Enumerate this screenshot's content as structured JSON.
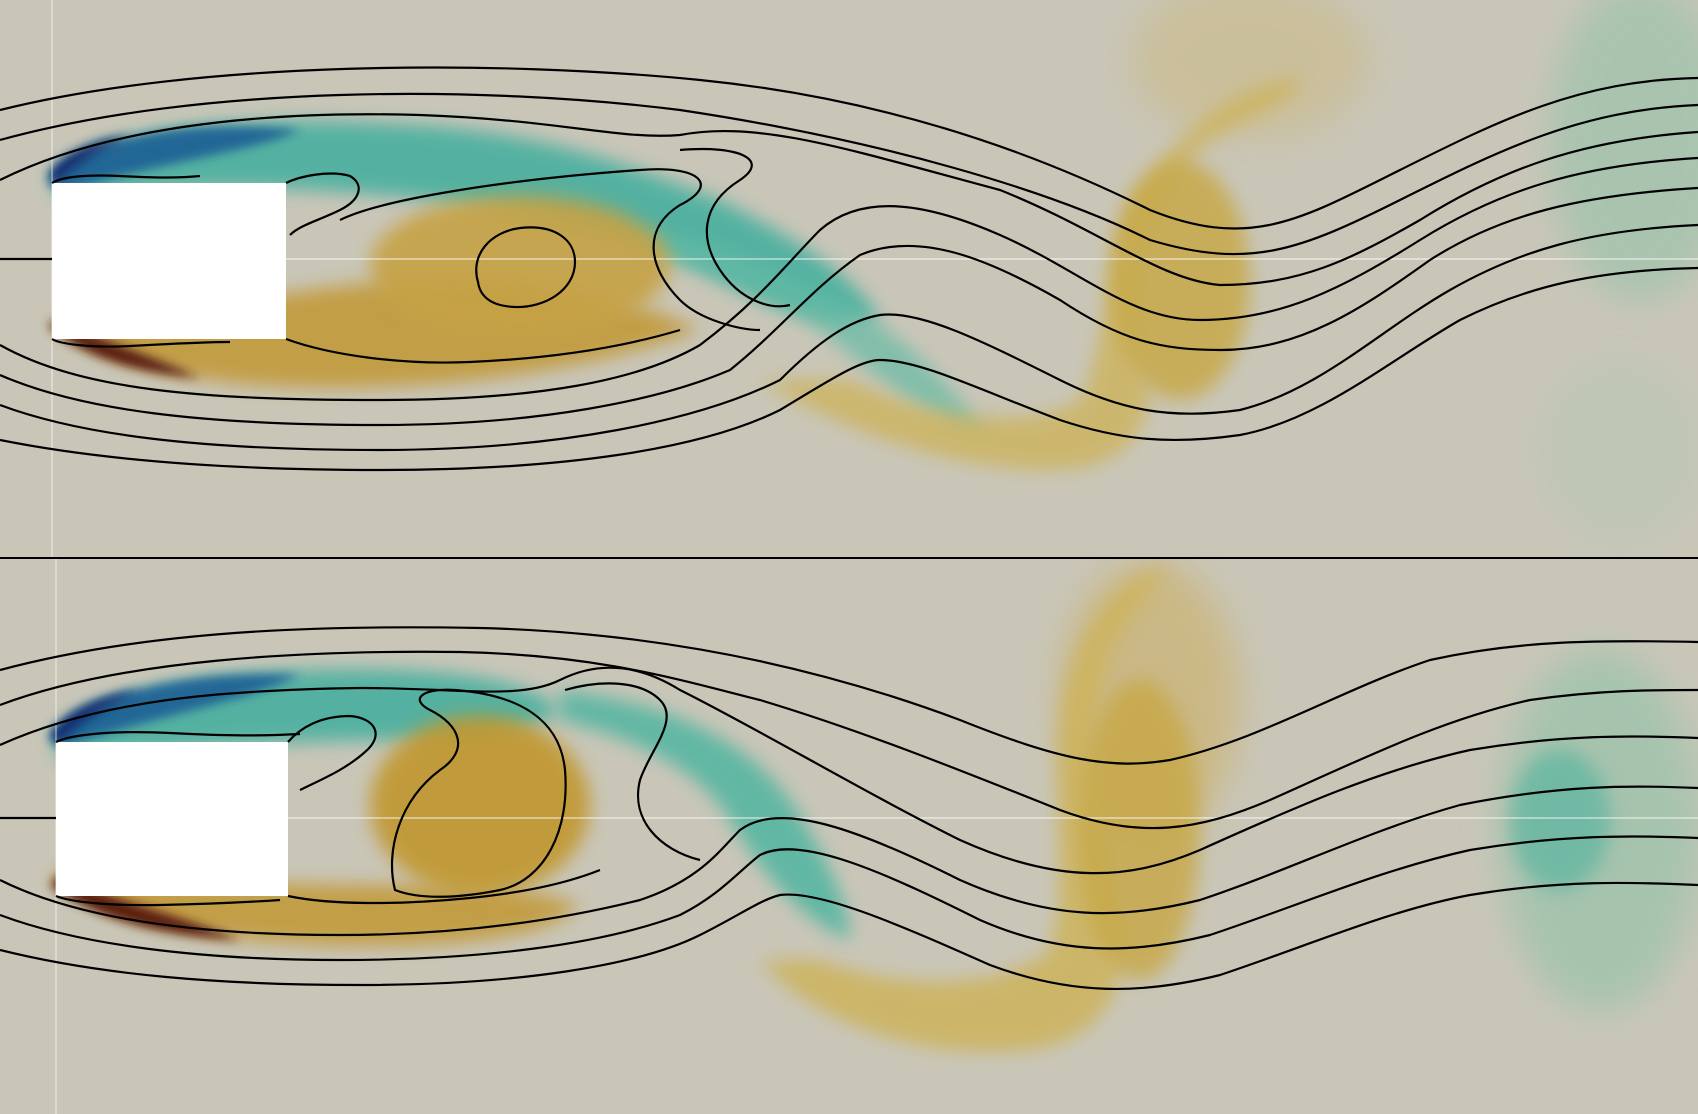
{
  "scene": {
    "description_free": true,
    "panels": [
      {
        "id": "top"
      },
      {
        "id": "bottom"
      }
    ],
    "colors": {
      "background": "#c9c6b8",
      "positive": "#c9a23a",
      "positive_strong": "#5a1a0a",
      "negative": "#2aa7a0",
      "negative_strong": "#0a2a6e",
      "obstacle": "#ffffff",
      "contour": "#000000",
      "divider": "#000000"
    }
  }
}
